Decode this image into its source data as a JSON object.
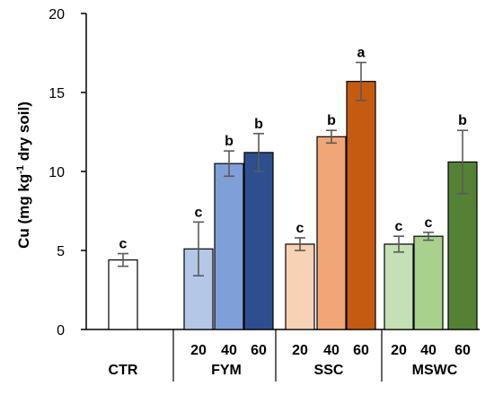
{
  "chart_data": {
    "type": "bar",
    "ylabel": {
      "prefix": "Cu  (mg kg",
      "superscript": "-1",
      "suffix": " dry soil)"
    },
    "ylim": [
      0,
      20
    ],
    "yticks": [
      "0",
      "5",
      "10",
      "15",
      "20"
    ],
    "grid": false,
    "legend": "none",
    "groups": [
      {
        "name": "CTR",
        "bars": [
          {
            "dose": "",
            "value": 4.4,
            "error": 0.4,
            "letter": "c",
            "color": "#ffffff"
          }
        ]
      },
      {
        "name": "FYM",
        "bars": [
          {
            "dose": "20",
            "value": 5.1,
            "error": 1.7,
            "letter": "c",
            "color": "#b4c7e7"
          },
          {
            "dose": "40",
            "value": 10.5,
            "error": 0.8,
            "letter": "b",
            "color": "#7f9fd8"
          },
          {
            "dose": "60",
            "value": 11.2,
            "error": 1.2,
            "letter": "b",
            "color": "#2e4f8f"
          }
        ]
      },
      {
        "name": "SSC",
        "bars": [
          {
            "dose": "20",
            "value": 5.4,
            "error": 0.4,
            "letter": "c",
            "color": "#f8d2b4"
          },
          {
            "dose": "40",
            "value": 12.2,
            "error": 0.4,
            "letter": "b",
            "color": "#f1a677"
          },
          {
            "dose": "60",
            "value": 15.7,
            "error": 1.2,
            "letter": "a",
            "color": "#c55a11"
          }
        ]
      },
      {
        "name": "MSWC",
        "bars": [
          {
            "dose": "20",
            "value": 5.4,
            "error": 0.5,
            "letter": "c",
            "color": "#c5e0b4"
          },
          {
            "dose": "40",
            "value": 5.9,
            "error": 0.25,
            "letter": "c",
            "color": "#a9d18e"
          },
          {
            "dose": "60",
            "value": 10.6,
            "error": 2.0,
            "letter": "b",
            "color": "#548235"
          }
        ]
      }
    ]
  }
}
